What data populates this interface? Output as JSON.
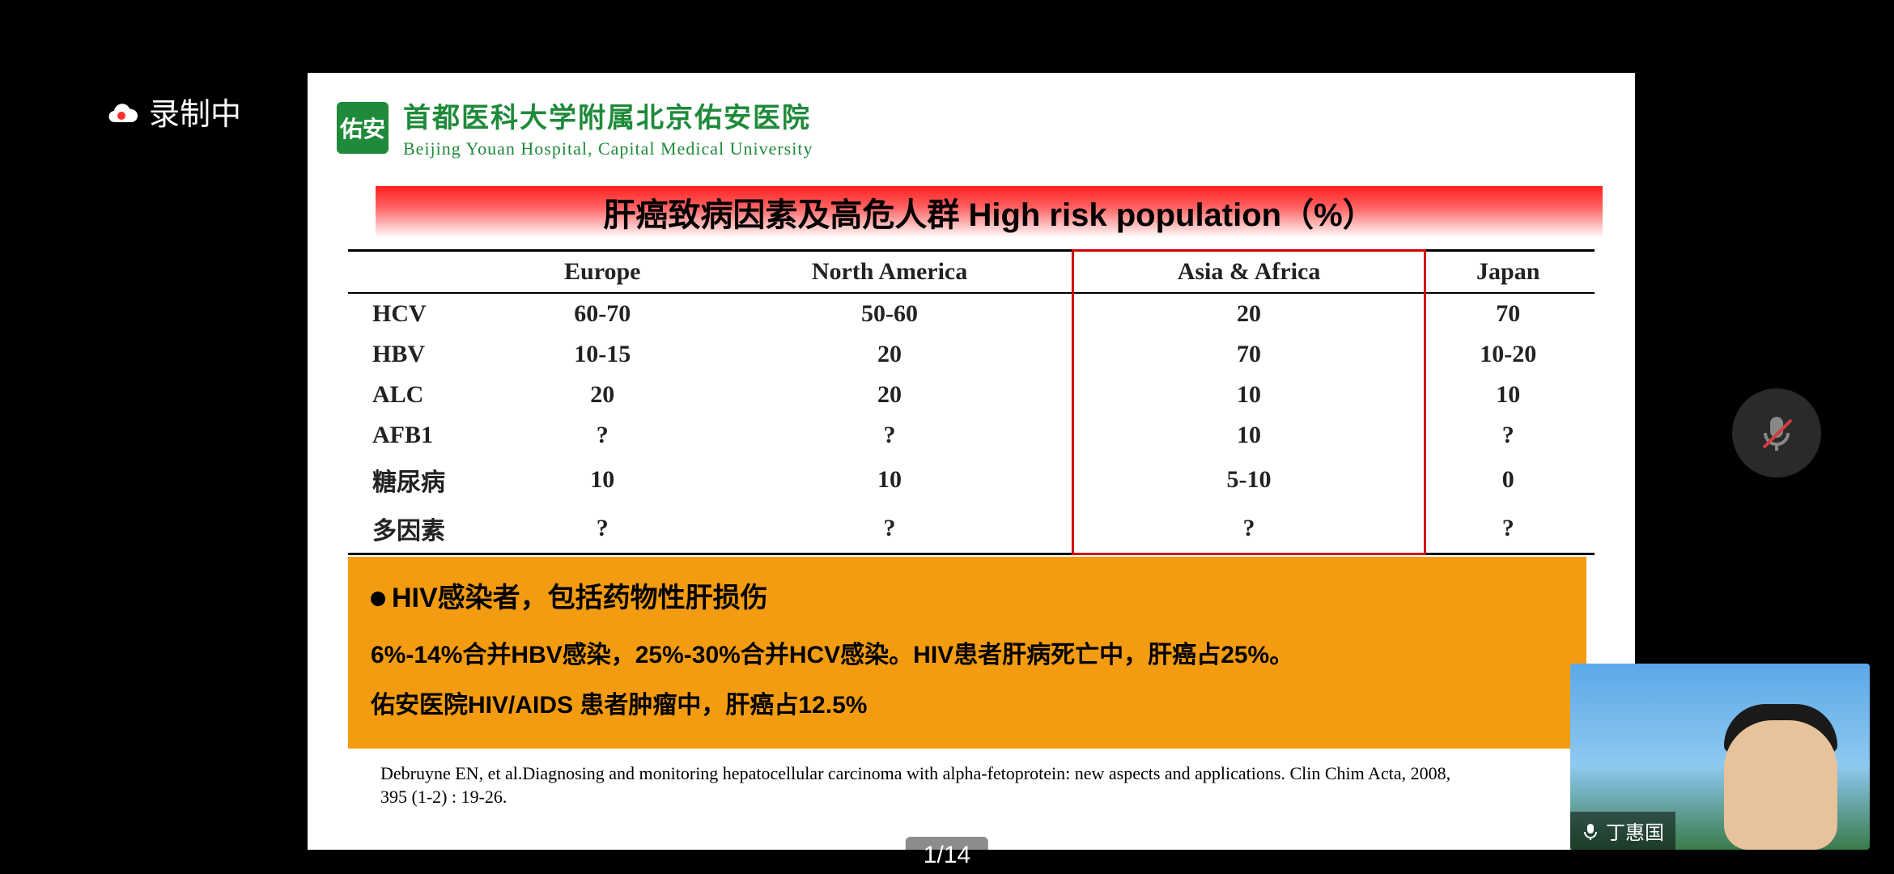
{
  "recording_label": "录制中",
  "org": {
    "logo_text": "佑安",
    "name_cn": "首都医科大学附属北京佑安医院",
    "name_en": "Beijing Youan Hospital, Capital Medical University"
  },
  "slide_title": "肝癌致病因素及高危人群  High risk population（%）",
  "table": {
    "columns": [
      "",
      "Europe",
      "North America",
      "Asia & Africa",
      "Japan"
    ],
    "highlight_column_index": 3,
    "rows": [
      [
        "HCV",
        "60-70",
        "50-60",
        "20",
        "70"
      ],
      [
        "HBV",
        "10-15",
        "20",
        "70",
        "10-20"
      ],
      [
        "ALC",
        "20",
        "20",
        "10",
        "10"
      ],
      [
        "AFB1",
        "?",
        "?",
        "10",
        "?"
      ],
      [
        "糖尿病",
        "10",
        "10",
        "5-10",
        "0"
      ],
      [
        "多因素",
        "?",
        "?",
        "?",
        "?"
      ]
    ],
    "highlight_box_color": "#d00000"
  },
  "hiv_panel": {
    "title": "HIV感染者，包括药物性肝损伤",
    "line1_parts": [
      "6%-14%",
      "合并",
      "HBV",
      "感染，",
      "25%-30%",
      "合并",
      "HCV",
      "感染。",
      "HIV",
      "患者肝病死亡中，肝癌占",
      "25%",
      "。"
    ],
    "line2_parts": [
      "佑安医院",
      "HIV/AIDS",
      " 患者肿瘤中，肝癌占",
      "12.5%"
    ],
    "background": "#f39c12"
  },
  "citation": "Debruyne EN, et al.Diagnosing and monitoring hepatocellular carcinoma with alpha-fetoprotein: new aspects and applications. Clin Chim Acta, 2008, 395 (1-2) : 19-26.",
  "page_counter": "1/14",
  "presenter_name": "丁惠国",
  "colors": {
    "brand_green": "#1e8a3a",
    "title_gradient_top": "#ff2020",
    "orange_panel": "#f39c12",
    "black": "#000000",
    "white": "#ffffff"
  }
}
